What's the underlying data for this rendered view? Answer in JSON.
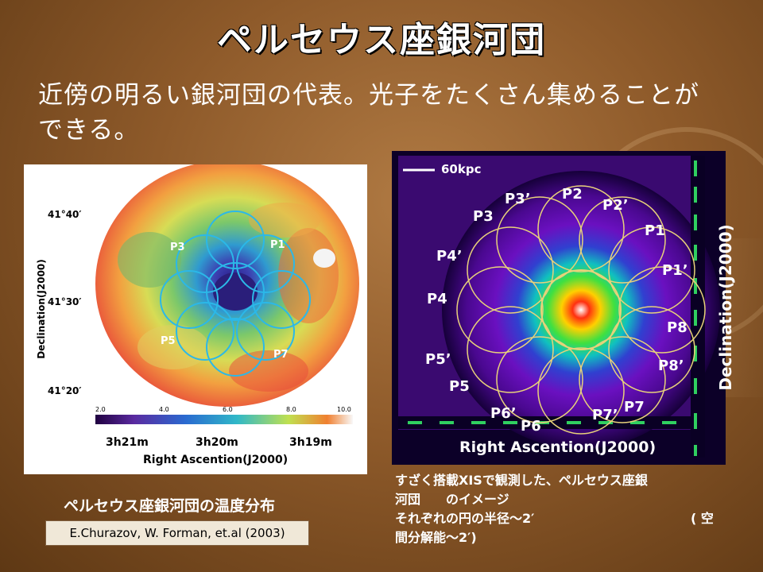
{
  "title": "ペルセウス座銀河団",
  "subtitle": "近傍の明るい銀河団の代表。光子をたくさん集めることができる。",
  "left_figure": {
    "ylabel": "Declination(J2000)",
    "yticks": [
      "41°40′",
      "41°30′",
      "41°20′"
    ],
    "xticks": [
      "3h21m",
      "3h20m",
      "3h19m"
    ],
    "xlabel": "Right Ascention(J2000)",
    "colorbar_ticks": [
      "2.0",
      "4.0",
      "6.0",
      "8.0",
      "10.0"
    ],
    "pointing_labels": [
      "P3",
      "P1",
      "P5",
      "P7"
    ],
    "caption": "ペルセウス座銀河団の温度分布",
    "credit": "E.Churazov, W. Forman, et.al (2003)"
  },
  "right_figure": {
    "scale_label": "60kpc",
    "xlabel": "Right Ascention(J2000)",
    "ylabel": "Declination(J2000)",
    "pointing_labels": [
      "P2",
      "P3’",
      "P2’",
      "P3",
      "P1",
      "P4’",
      "P1’",
      "P4",
      "P8",
      "P5’",
      "P8’",
      "P5",
      "P7",
      "P6’",
      "P7’",
      "P6"
    ],
    "caption_line1": "すざく搭載XISで観測した、ペルセウス座銀",
    "caption_line2": "河団　　のイメージ",
    "caption_line3a": "それぞれの円の半径～2′",
    "caption_line3b": "( 空",
    "caption_line4": "間分解能～2′)"
  },
  "colors": {
    "title_text": "#ffffff",
    "background": "#8e5a2a",
    "circle_right": "#e8d27a",
    "circle_left": "#2bb8e8"
  }
}
